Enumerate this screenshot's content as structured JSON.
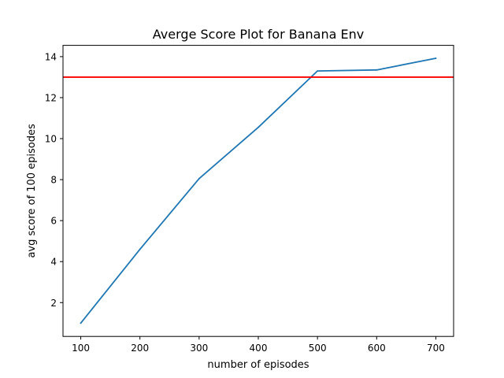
{
  "chart_data": {
    "type": "line",
    "title": "Averge Score Plot for Banana Env",
    "xlabel": "number of episodes",
    "ylabel": "avg score of 100 episodes",
    "xlim": [
      70,
      730
    ],
    "ylim": [
      0.35,
      14.55
    ],
    "x_ticks": [
      100,
      200,
      300,
      400,
      500,
      600,
      700
    ],
    "y_ticks": [
      2,
      4,
      6,
      8,
      10,
      12,
      14
    ],
    "series": [
      {
        "x": [
          100,
          200,
          300,
          400,
          500,
          600,
          700
        ],
        "y": [
          1.0,
          4.6,
          8.05,
          10.55,
          13.3,
          13.35,
          13.92
        ],
        "color": "#1f77b4"
      }
    ],
    "reference_line": {
      "y": 13,
      "color": "#ff0000"
    },
    "grid": false,
    "legend": "none"
  }
}
